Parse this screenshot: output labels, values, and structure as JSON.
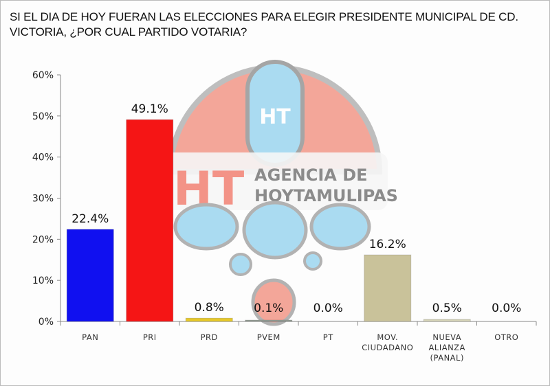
{
  "chart_data": {
    "type": "bar",
    "title": "SI EL DIA DE HOY FUERAN LAS ELECCIONES PARA ELEGIR PRESIDENTE MUNICIPAL DE CD. VICTORIA, ¿POR CUAL PARTIDO VOTARIA?",
    "xlabel": "",
    "ylabel": "",
    "categories": [
      "PAN",
      "PRI",
      "PRD",
      "PVEM",
      "PT",
      "MOV. CIUDADANO",
      "NUEVA ALIANZA (PANAL)",
      "OTRO"
    ],
    "category_lines": [
      [
        "PAN"
      ],
      [
        "PRI"
      ],
      [
        "PRD"
      ],
      [
        "PVEM"
      ],
      [
        "PT"
      ],
      [
        "MOV.",
        "CIUDADANO"
      ],
      [
        "NUEVA",
        "ALIANZA",
        "(PANAL)"
      ],
      [
        "OTRO"
      ]
    ],
    "values": [
      22.4,
      49.1,
      0.8,
      0.1,
      0.0,
      16.2,
      0.5,
      0.0
    ],
    "data_labels": [
      "22.4%",
      "49.1%",
      "0.8%",
      "0.1%",
      "0.0%",
      "16.2%",
      "0.5%",
      "0.0%"
    ],
    "colors": [
      "#1010f0",
      "#f51515",
      "#e6c82a",
      "#9aa39a",
      "#cccccc",
      "#c9c29a",
      "#d6d4b8",
      "#cccccc"
    ],
    "ylim": [
      0,
      60
    ],
    "yticks": [
      0,
      10,
      20,
      30,
      40,
      50,
      60
    ],
    "ytick_labels": [
      "0%",
      "10%",
      "20%",
      "30%",
      "40%",
      "50%",
      "60%"
    ],
    "grid": false,
    "legend": "none"
  },
  "watermark": {
    "logo_text": "HT AGENCIA DE HOYTAMULIPAS"
  }
}
